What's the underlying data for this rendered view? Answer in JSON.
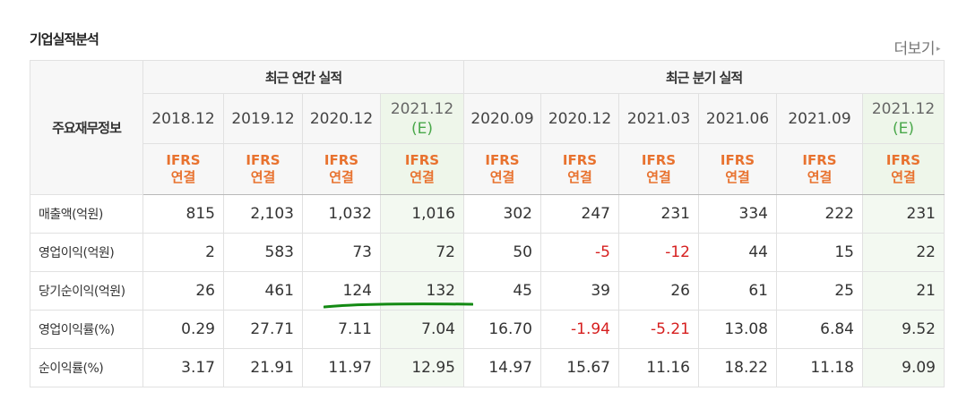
{
  "section_title": "기업실적분석",
  "more_link": {
    "label": "더보기",
    "arrow": "▸"
  },
  "table": {
    "label_header": "주요재무정보",
    "group_headers": [
      "최근 연간 실적",
      "최근 분기 실적"
    ],
    "periods": [
      {
        "date": "2018.12",
        "est": ""
      },
      {
        "date": "2019.12",
        "est": ""
      },
      {
        "date": "2020.12",
        "est": ""
      },
      {
        "date": "2021.12",
        "est": "(E)"
      },
      {
        "date": "2020.09",
        "est": ""
      },
      {
        "date": "2020.12",
        "est": ""
      },
      {
        "date": "2021.03",
        "est": ""
      },
      {
        "date": "2021.06",
        "est": ""
      },
      {
        "date": "2021.09",
        "est": ""
      },
      {
        "date": "2021.12",
        "est": "(E)"
      }
    ],
    "basis": {
      "line1": "IFRS",
      "line2": "연결"
    },
    "rows": [
      {
        "label": "매출액(억원)",
        "values": [
          "815",
          "2,103",
          "1,032",
          "1,016",
          "302",
          "247",
          "231",
          "334",
          "222",
          "231"
        ]
      },
      {
        "label": "영업이익(억원)",
        "values": [
          "2",
          "583",
          "73",
          "72",
          "50",
          "-5",
          "-12",
          "44",
          "15",
          "22"
        ]
      },
      {
        "label": "당기순이익(억원)",
        "values": [
          "26",
          "461",
          "124",
          "132",
          "45",
          "39",
          "26",
          "61",
          "25",
          "21"
        ]
      },
      {
        "label": "영업이익률(%)",
        "values": [
          "0.29",
          "27.71",
          "7.11",
          "7.04",
          "16.70",
          "-1.94",
          "-5.21",
          "13.08",
          "6.84",
          "9.52"
        ]
      },
      {
        "label": "순이익률(%)",
        "values": [
          "3.17",
          "21.91",
          "11.97",
          "12.95",
          "14.97",
          "15.67",
          "11.16",
          "18.22",
          "11.18",
          "9.09"
        ]
      }
    ]
  },
  "colors": {
    "ifrs_orange": "#e8722f",
    "negative_red": "#d61f1f",
    "estimate_green": "#4aa84a",
    "annotation_green": "#138a13"
  }
}
